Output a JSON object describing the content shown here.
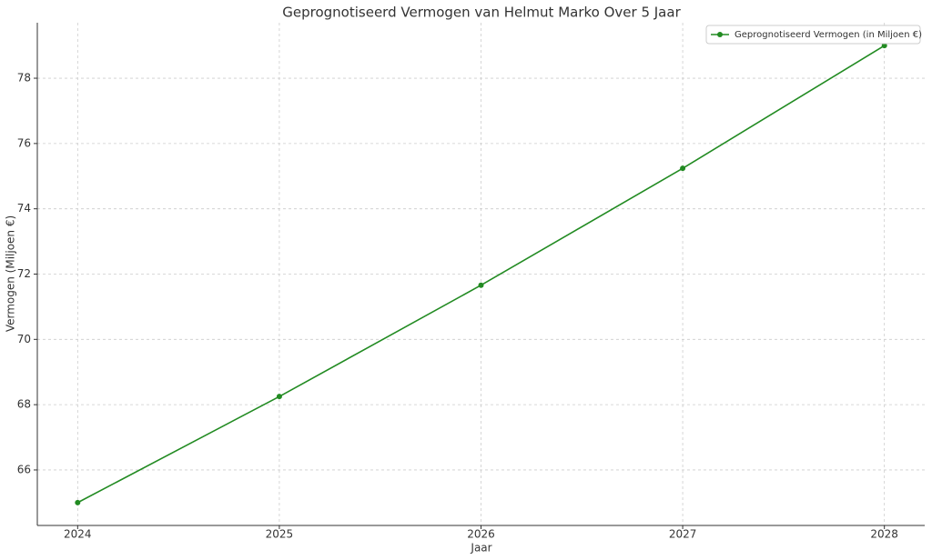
{
  "chart_data": {
    "type": "line",
    "title": "Geprognotiseerd Vermogen van Helmut Marko Over 5 Jaar",
    "x_label": "Jaar",
    "y_label": "Vermogen (Miljoen €)",
    "x": [
      2024,
      2025,
      2026,
      2027,
      2028
    ],
    "series": [
      {
        "name": "Geprognotiseerd Vermogen (in Miljoen €)",
        "color": "#228b22",
        "values": [
          65,
          68.25,
          71.66,
          75.24,
          79.0
        ]
      }
    ],
    "xlim": [
      2023.8,
      2028.2
    ],
    "xticks": [
      2024,
      2025,
      2026,
      2027,
      2028
    ],
    "ylim": [
      64.3,
      79.7
    ],
    "yticks": [
      66,
      68,
      70,
      72,
      74,
      76,
      78
    ],
    "grid": true,
    "legend": "upper-right"
  }
}
